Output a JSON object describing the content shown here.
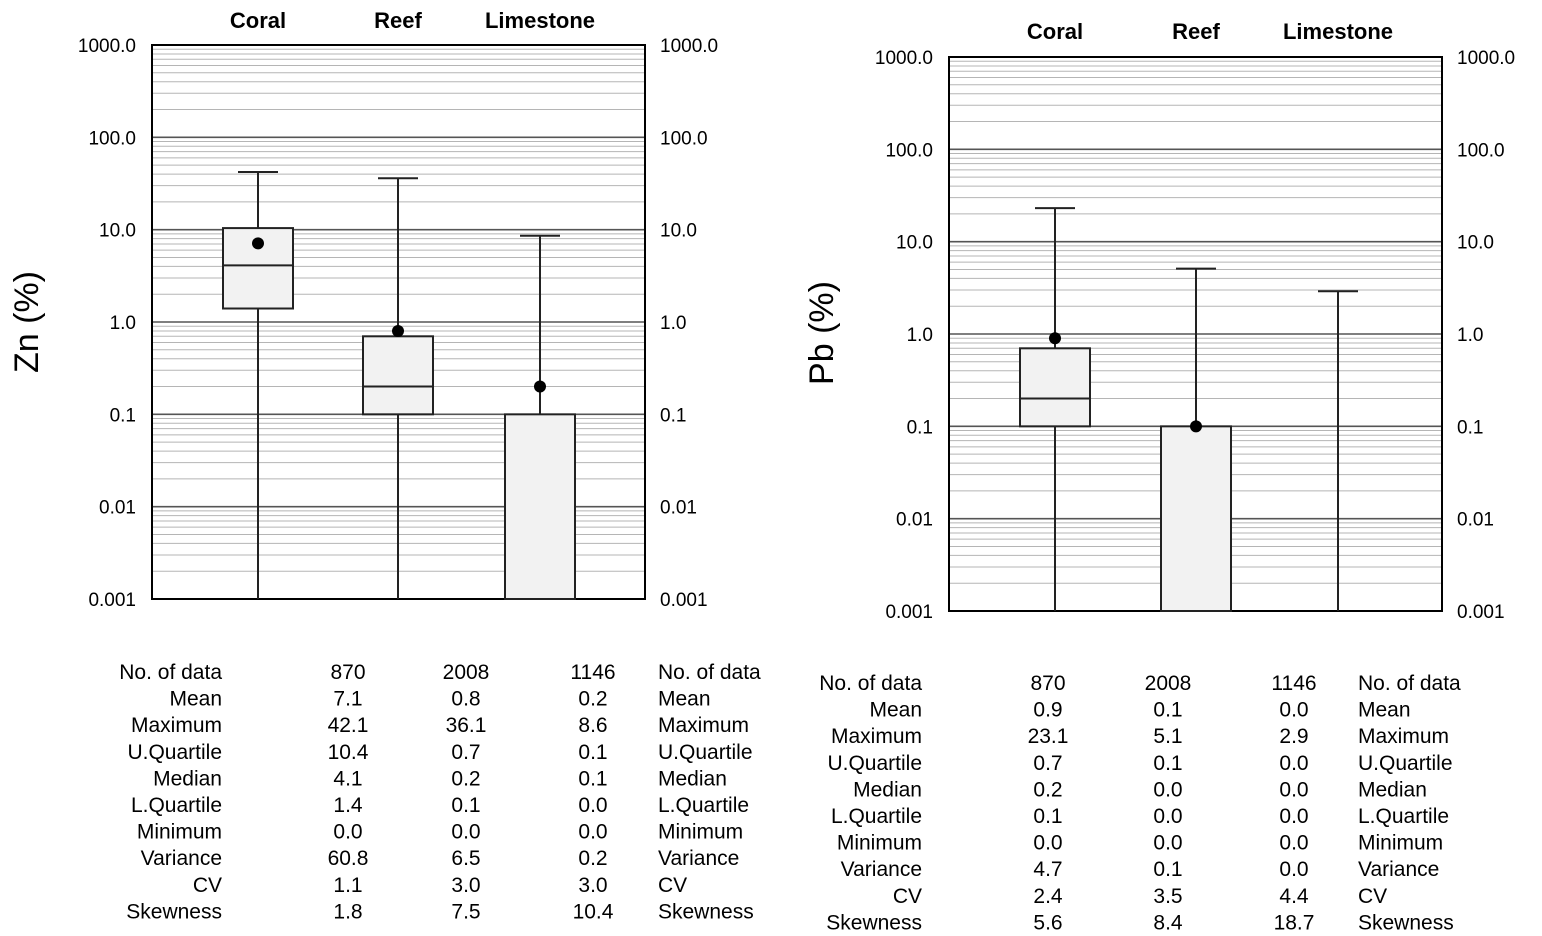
{
  "chart_data": [
    {
      "type": "box",
      "ylabel": "Zn (%)",
      "yscale": "log",
      "ylim": [
        0.001,
        1000
      ],
      "y_tick_labels": [
        "1000.0",
        "100.0",
        "10.0",
        "1.0",
        "0.1",
        "0.01",
        "0.001"
      ],
      "categories": [
        "Coral",
        "Reef",
        "Limestone"
      ],
      "boxes": [
        {
          "min": 0.0,
          "lq": 1.4,
          "median": 4.1,
          "uq": 10.4,
          "max": 42.1,
          "mean": 7.1
        },
        {
          "min": 0.0,
          "lq": 0.1,
          "median": 0.2,
          "uq": 0.7,
          "max": 36.1,
          "mean": 0.8
        },
        {
          "min": 0.0,
          "lq": 0.0,
          "median": 0.1,
          "uq": 0.1,
          "max": 8.6,
          "mean": 0.2
        }
      ],
      "stats_table": {
        "rows": [
          "No. of data",
          "Mean",
          "Maximum",
          "U.Quartile",
          "Median",
          "L.Quartile",
          "Minimum",
          "Variance",
          "CV",
          "Skewness"
        ],
        "values": [
          [
            "870",
            "2008",
            "1146"
          ],
          [
            "7.1",
            "0.8",
            "0.2"
          ],
          [
            "42.1",
            "36.1",
            "8.6"
          ],
          [
            "10.4",
            "0.7",
            "0.1"
          ],
          [
            "4.1",
            "0.2",
            "0.1"
          ],
          [
            "1.4",
            "0.1",
            "0.0"
          ],
          [
            "0.0",
            "0.0",
            "0.0"
          ],
          [
            "60.8",
            "6.5",
            "0.2"
          ],
          [
            "1.1",
            "3.0",
            "3.0"
          ],
          [
            "1.8",
            "7.5",
            "10.4"
          ]
        ]
      }
    },
    {
      "type": "box",
      "ylabel": "Pb (%)",
      "yscale": "log",
      "ylim": [
        0.001,
        1000
      ],
      "y_tick_labels": [
        "1000.0",
        "100.0",
        "10.0",
        "1.0",
        "0.1",
        "0.01",
        "0.001"
      ],
      "categories": [
        "Coral",
        "Reef",
        "Limestone"
      ],
      "boxes": [
        {
          "min": 0.0,
          "lq": 0.1,
          "median": 0.2,
          "uq": 0.7,
          "max": 23.1,
          "mean": 0.9
        },
        {
          "min": 0.0,
          "lq": 0.0,
          "median": 0.0,
          "uq": 0.1,
          "max": 5.1,
          "mean": 0.1
        },
        {
          "min": 0.0,
          "lq": 0.0,
          "median": 0.0,
          "uq": 0.0,
          "max": 2.9,
          "mean": 0.0
        }
      ],
      "stats_table": {
        "rows": [
          "No. of data",
          "Mean",
          "Maximum",
          "U.Quartile",
          "Median",
          "L.Quartile",
          "Minimum",
          "Variance",
          "CV",
          "Skewness"
        ],
        "values": [
          [
            "870",
            "2008",
            "1146"
          ],
          [
            "0.9",
            "0.1",
            "0.0"
          ],
          [
            "23.1",
            "5.1",
            "2.9"
          ],
          [
            "0.7",
            "0.1",
            "0.0"
          ],
          [
            "0.2",
            "0.0",
            "0.0"
          ],
          [
            "0.1",
            "0.0",
            "0.0"
          ],
          [
            "0.0",
            "0.0",
            "0.0"
          ],
          [
            "4.7",
            "0.1",
            "0.0"
          ],
          [
            "2.4",
            "3.5",
            "4.4"
          ],
          [
            "5.6",
            "8.4",
            "18.7"
          ]
        ]
      }
    }
  ]
}
